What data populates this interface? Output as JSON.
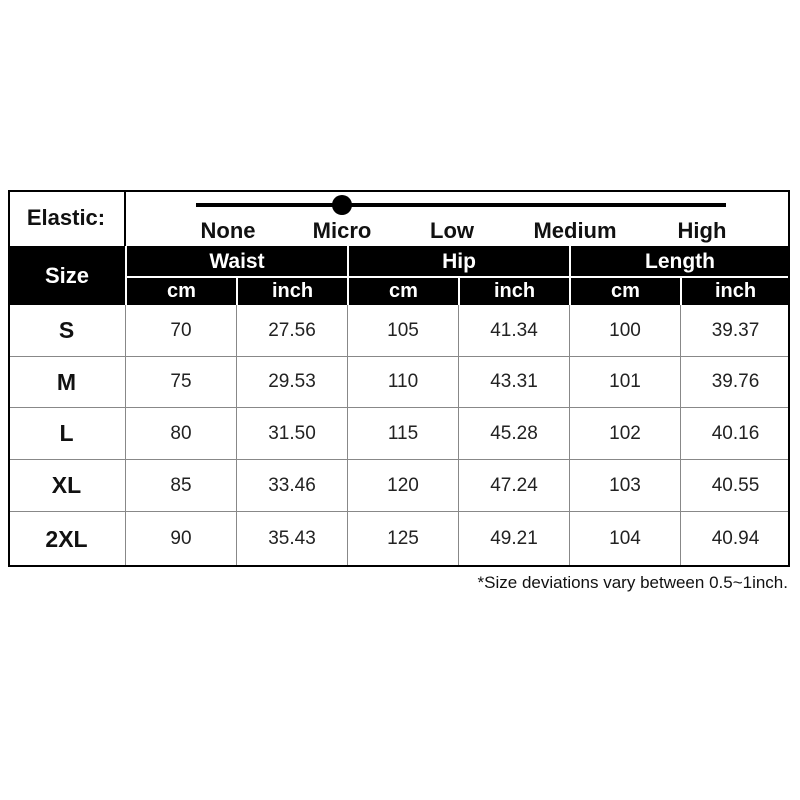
{
  "elastic": {
    "label": "Elastic:",
    "options": [
      "None",
      "Micro",
      "Low",
      "Medium",
      "High"
    ],
    "selected_index": 1
  },
  "table": {
    "size_header": "Size",
    "groups": [
      "Waist",
      "Hip",
      "Length"
    ],
    "units": [
      "cm",
      "inch"
    ],
    "rows": [
      [
        "S",
        "70",
        "27.56",
        "105",
        "41.34",
        "100",
        "39.37"
      ],
      [
        "M",
        "75",
        "29.53",
        "110",
        "43.31",
        "101",
        "39.76"
      ],
      [
        "L",
        "80",
        "31.50",
        "115",
        "45.28",
        "102",
        "40.16"
      ],
      [
        "XL",
        "85",
        "33.46",
        "120",
        "47.24",
        "103",
        "40.55"
      ],
      [
        "2XL",
        "90",
        "35.43",
        "125",
        "49.21",
        "104",
        "40.94"
      ]
    ]
  },
  "footnote": "*Size deviations vary between 0.5~1inch."
}
